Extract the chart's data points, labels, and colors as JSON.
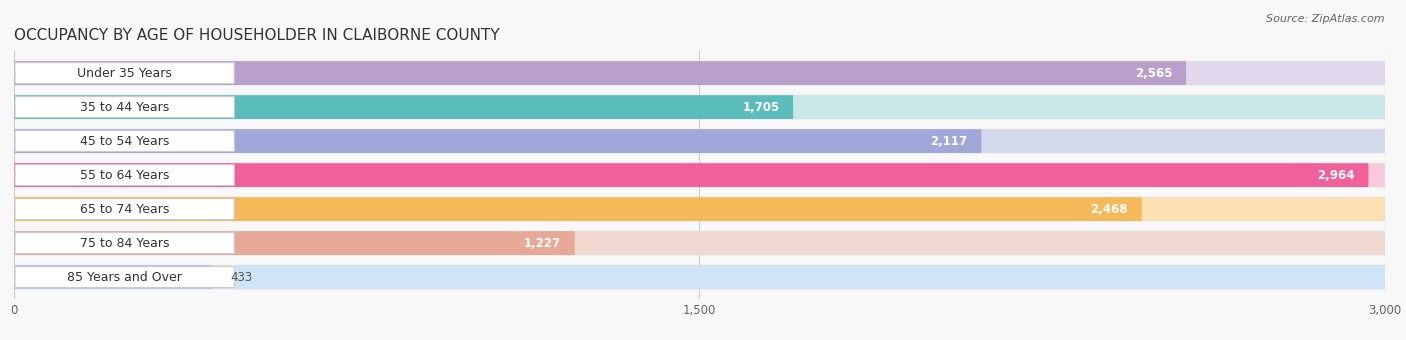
{
  "title": "OCCUPANCY BY AGE OF HOUSEHOLDER IN CLAIBORNE COUNTY",
  "source": "Source: ZipAtlas.com",
  "categories": [
    "Under 35 Years",
    "35 to 44 Years",
    "45 to 54 Years",
    "55 to 64 Years",
    "65 to 74 Years",
    "75 to 84 Years",
    "85 Years and Over"
  ],
  "values": [
    2565,
    1705,
    2117,
    2964,
    2468,
    1227,
    433
  ],
  "bar_colors": [
    "#b89fcc",
    "#5bbcbc",
    "#9fa8d8",
    "#f0609a",
    "#f5b95a",
    "#e8a898",
    "#a8c8f0"
  ],
  "bar_bg_colors": [
    "#e0d8ec",
    "#c8e8e8",
    "#d4d8ec",
    "#f8c8dc",
    "#fce0b0",
    "#f0d8d0",
    "#d0e4f8"
  ],
  "xlim": [
    0,
    3000
  ],
  "xticks": [
    0,
    1500,
    3000
  ],
  "xtick_labels": [
    "0",
    "1,500",
    "3,000"
  ],
  "background_color": "#f8f8f8",
  "row_bg_color": "#ffffff",
  "title_fontsize": 11,
  "label_fontsize": 9,
  "value_fontsize": 8.5
}
